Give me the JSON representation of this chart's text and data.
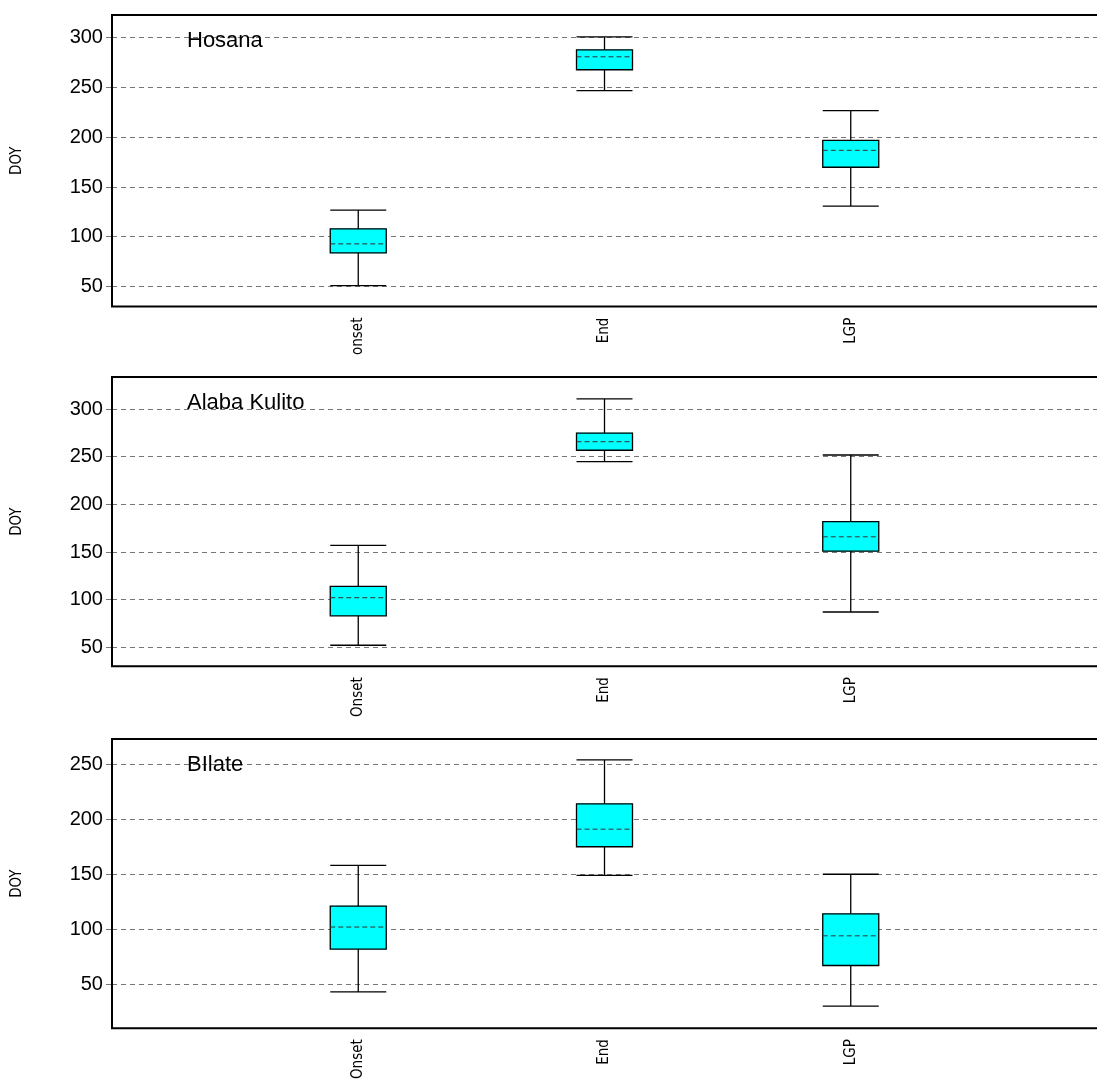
{
  "chart_data": [
    {
      "type": "box",
      "title": "Hosana",
      "ylabel": "DOY",
      "categories": [
        "onset",
        "End",
        "LGP"
      ],
      "color": "#00ffff",
      "boxes": [
        {
          "low": 51,
          "q1": 84,
          "median": 93,
          "q3": 108,
          "high": 127
        },
        {
          "low": 247,
          "q1": 268,
          "median": 281,
          "q3": 288,
          "high": 301
        },
        {
          "low": 131,
          "q1": 170,
          "median": 187,
          "q3": 197,
          "high": 227
        }
      ],
      "ylim": [
        30,
        323
      ],
      "yticks": [
        50,
        100,
        150,
        200,
        250,
        300
      ],
      "grid": "y"
    },
    {
      "type": "box",
      "title": "Alaba Kulito",
      "ylabel": "DOY",
      "categories": [
        "Onset",
        "End",
        "LGP"
      ],
      "color": "#00ffff",
      "boxes": [
        {
          "low": 52,
          "q1": 83,
          "median": 102,
          "q3": 114,
          "high": 157
        },
        {
          "low": 245,
          "q1": 257,
          "median": 266,
          "q3": 275,
          "high": 311
        },
        {
          "low": 87,
          "q1": 151,
          "median": 166,
          "q3": 182,
          "high": 252
        }
      ],
      "ylim": [
        30,
        334
      ],
      "yticks": [
        50,
        100,
        150,
        200,
        250,
        300
      ],
      "grid": "y"
    },
    {
      "type": "box",
      "title": "BIlate",
      "ylabel": "DOY",
      "categories": [
        "Onset",
        "End",
        "LGP"
      ],
      "color": "#00ffff",
      "boxes": [
        {
          "low": 43,
          "q1": 82,
          "median": 102,
          "q3": 121,
          "high": 158
        },
        {
          "low": 149,
          "q1": 175,
          "median": 191,
          "q3": 214,
          "high": 254
        },
        {
          "low": 30,
          "q1": 67,
          "median": 94,
          "q3": 114,
          "high": 150
        }
      ],
      "ylim": [
        10,
        273
      ],
      "yticks": [
        50,
        100,
        150,
        200,
        250
      ],
      "grid": "y"
    }
  ]
}
